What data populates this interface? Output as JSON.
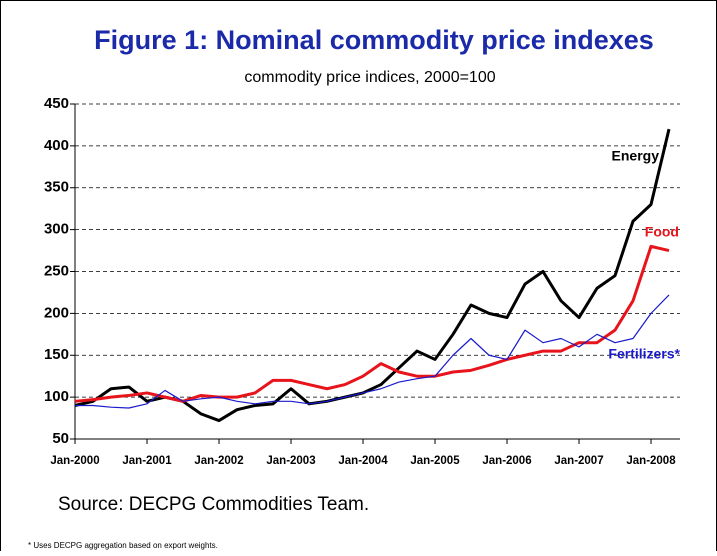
{
  "chart_data": {
    "type": "line",
    "title": "Figure 1: Nominal commodity price indexes",
    "subtitle": "commodity price indices, 2000=100",
    "source": "Source: DECPG Commodities Team.",
    "footnote": "* Uses DECPG aggregation based on export weights.",
    "categories": [
      "Jan-2000",
      null,
      null,
      null,
      "Jan-2001",
      null,
      null,
      null,
      "Jan-2002",
      null,
      null,
      null,
      "Jan-2003",
      null,
      null,
      null,
      "Jan-2004",
      null,
      null,
      null,
      "Jan-2005",
      null,
      null,
      null,
      "Jan-2006",
      null,
      null,
      null,
      "Jan-2007",
      null,
      null,
      null,
      "Jan-2008",
      null
    ],
    "series": [
      {
        "name": "Energy",
        "color": "#000000",
        "values": [
          90,
          95,
          110,
          112,
          95,
          100,
          95,
          80,
          72,
          85,
          90,
          92,
          110,
          92,
          95,
          100,
          105,
          115,
          135,
          155,
          145,
          175,
          210,
          200,
          195,
          235,
          250,
          215,
          195,
          230,
          245,
          310,
          330,
          420
        ]
      },
      {
        "name": "Food",
        "color": "#e8141b",
        "values": [
          95,
          97,
          100,
          102,
          105,
          100,
          95,
          102,
          100,
          100,
          105,
          120,
          120,
          115,
          110,
          115,
          125,
          140,
          130,
          125,
          125,
          130,
          132,
          138,
          145,
          150,
          155,
          155,
          165,
          165,
          180,
          215,
          280,
          275
        ]
      },
      {
        "name": "Fertilizers*",
        "color": "#1a1acc",
        "values": [
          90,
          90,
          88,
          87,
          92,
          108,
          95,
          98,
          100,
          95,
          92,
          95,
          95,
          92,
          95,
          100,
          105,
          110,
          118,
          122,
          125,
          150,
          170,
          150,
          145,
          180,
          165,
          170,
          160,
          175,
          165,
          170,
          200,
          222
        ]
      }
    ],
    "ylim": [
      50,
      450
    ],
    "yticks": [
      50,
      100,
      150,
      200,
      250,
      300,
      350,
      400,
      450
    ],
    "grid": true
  }
}
